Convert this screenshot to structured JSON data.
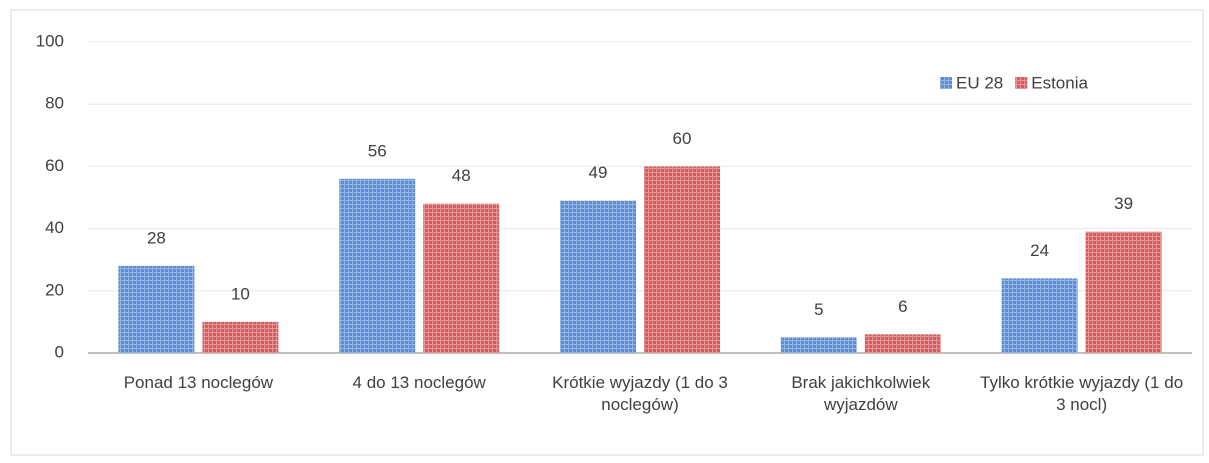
{
  "chart_data": {
    "type": "bar",
    "categories": [
      "Ponad 13 noclegów",
      "4 do 13 noclegów",
      "Krótkie wyjazdy (1 do 3 noclegów)",
      "Brak jakichkolwiek wyjazdów",
      "Tylko krótkie wyjazdy (1 do 3 nocl)"
    ],
    "series": [
      {
        "name": "EU 28",
        "color": "#5b8ed6",
        "values": [
          28,
          56,
          49,
          5,
          24
        ]
      },
      {
        "name": "Estonia",
        "color": "#d95c5e",
        "values": [
          10,
          48,
          60,
          6,
          39
        ]
      }
    ],
    "ylim": [
      0,
      100
    ],
    "yticks": [
      0,
      20,
      40,
      60,
      80,
      100
    ],
    "grid": true,
    "legend": "top-right"
  }
}
